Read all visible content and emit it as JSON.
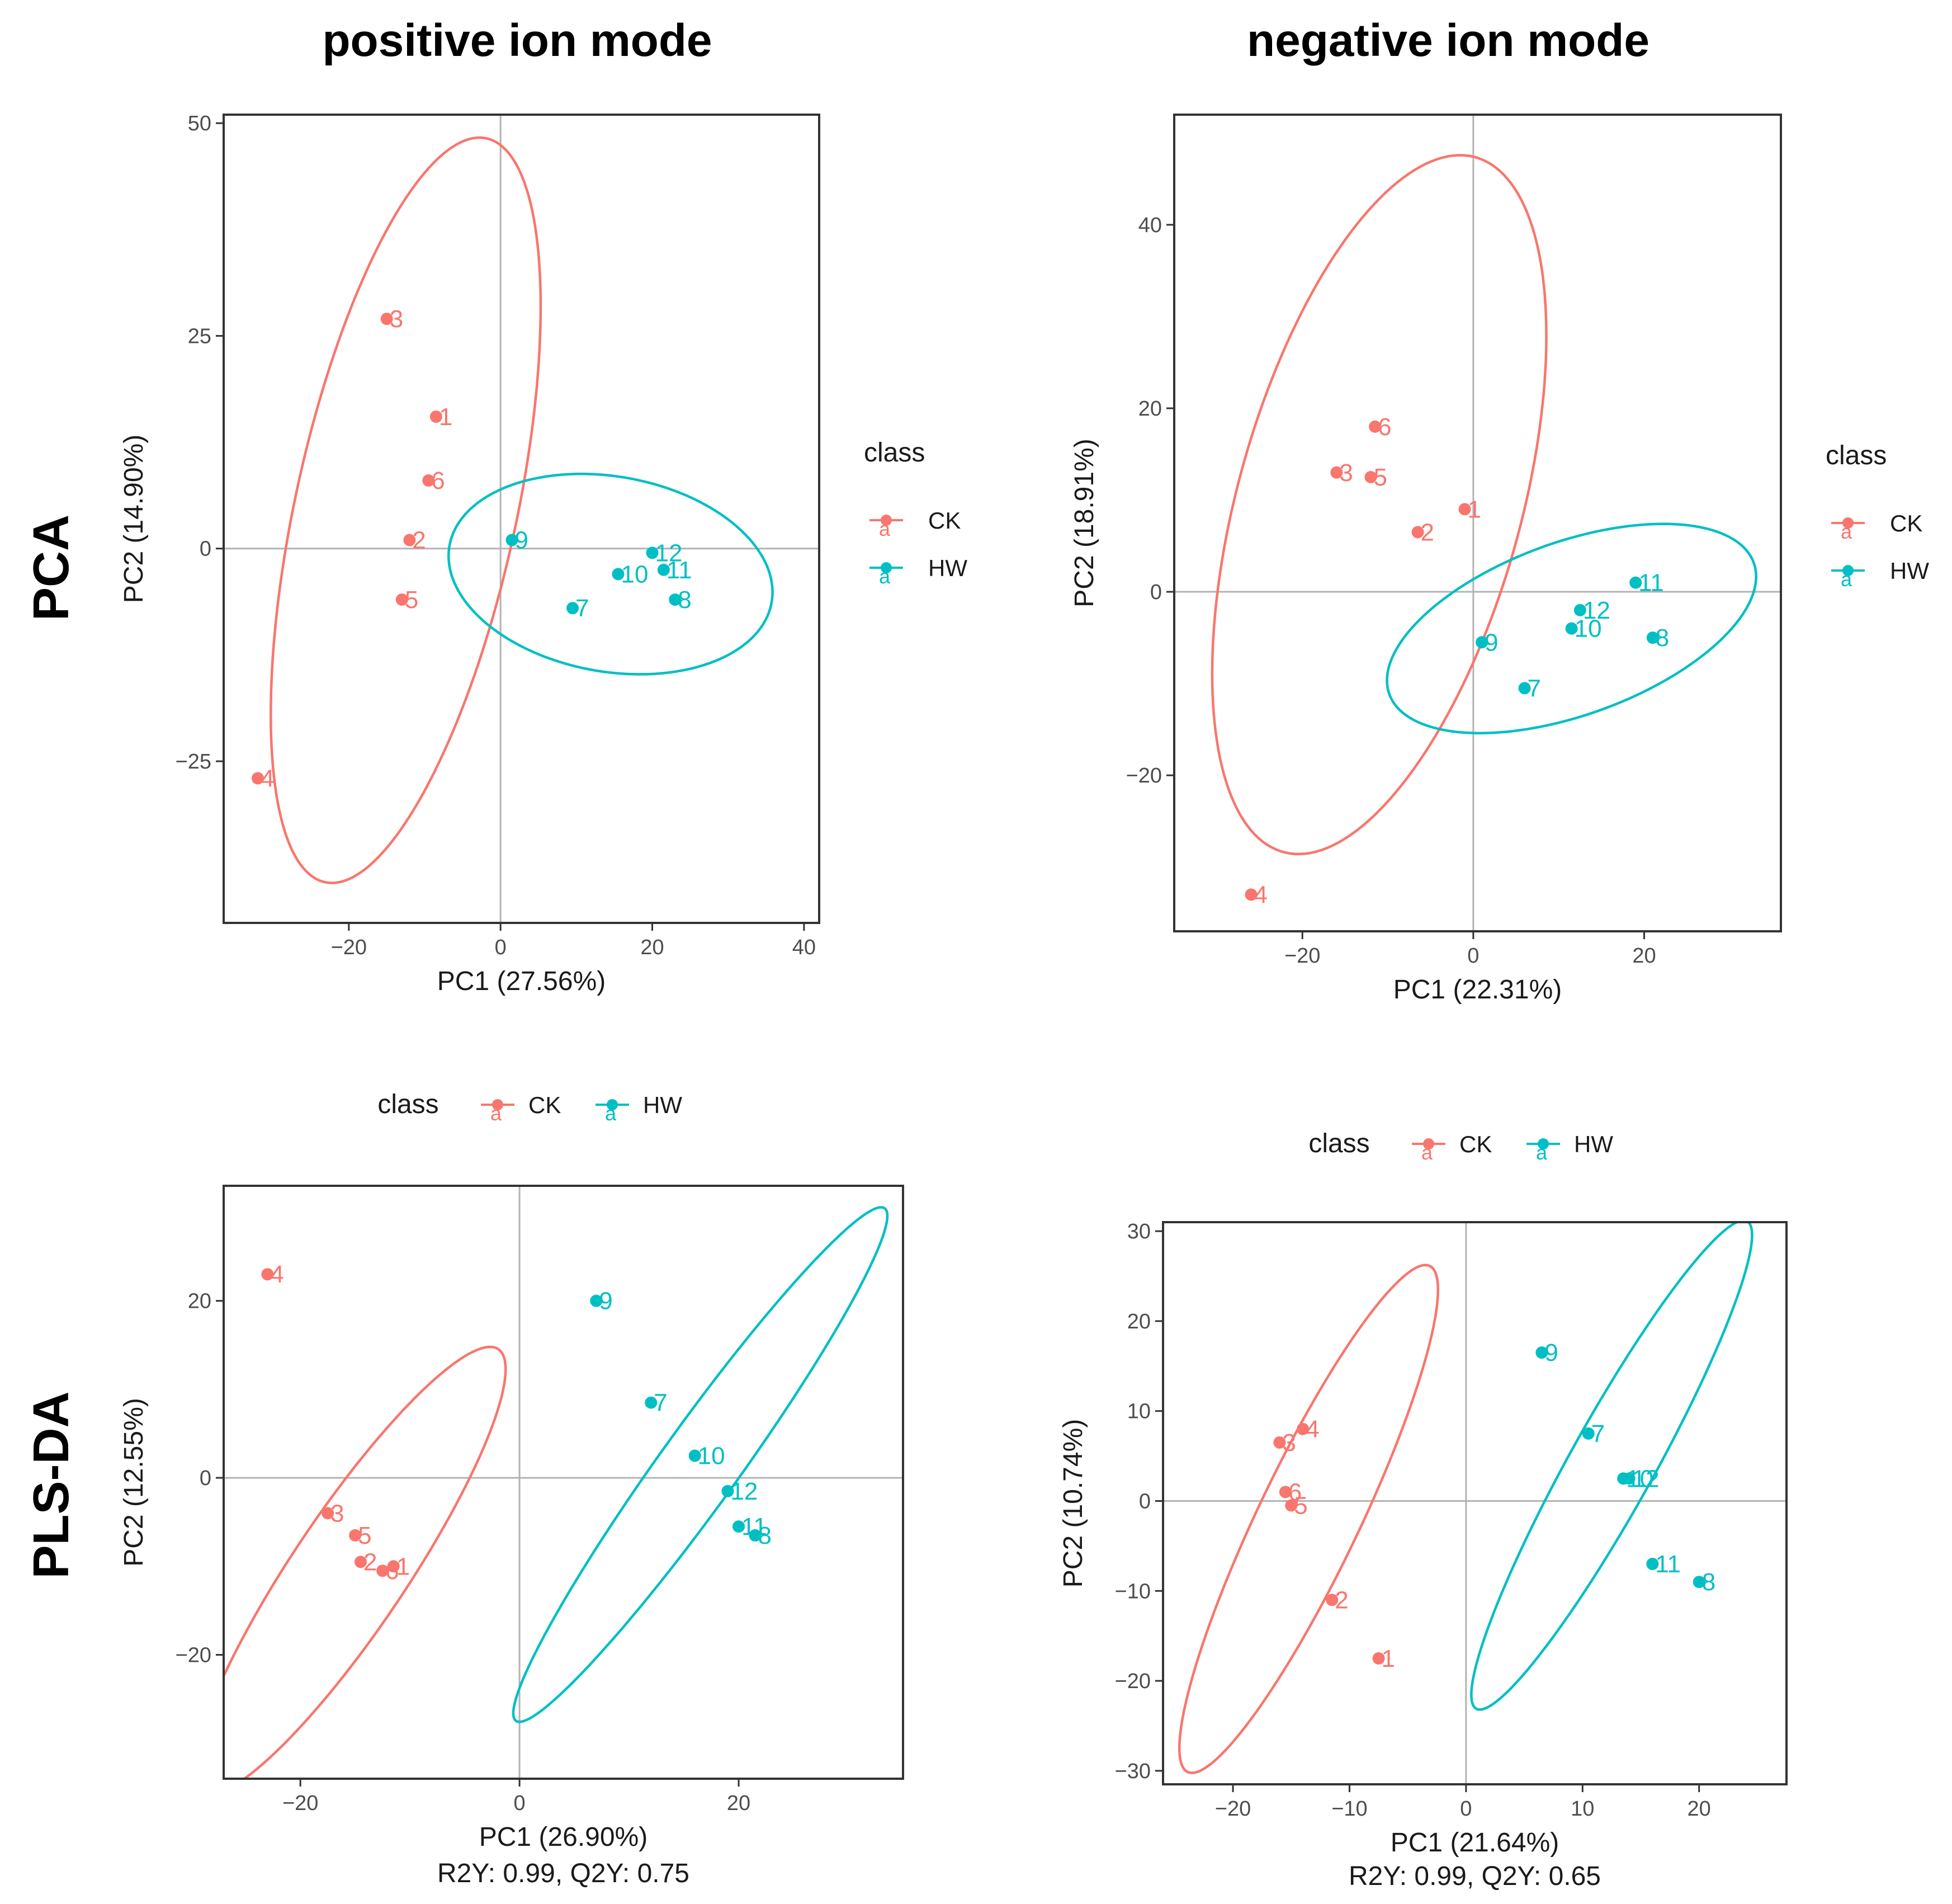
{
  "column_titles": [
    "positive ion mode",
    "negative ion mode"
  ],
  "row_titles": [
    "PCA",
    "PLS-DA"
  ],
  "colors": {
    "CK": "#F8766D",
    "HW": "#00BFC4"
  },
  "chart_data": [
    {
      "id": "pca_pos",
      "type": "scatter",
      "xlabel": "PC1 (27.56%)",
      "ylabel": "PC2 (14.90%)",
      "subtitle": "",
      "xlim": [
        -36.5,
        42
      ],
      "ylim": [
        -44,
        51
      ],
      "xticks": [
        -20,
        0,
        20,
        40
      ],
      "yticks": [
        -25,
        0,
        25,
        50
      ],
      "legend_position": "right",
      "legend": {
        "title": "class",
        "entries": [
          "CK",
          "HW"
        ],
        "key_glyph": "a"
      },
      "series": [
        {
          "name": "CK",
          "points": [
            {
              "label": "1",
              "x": -8.5,
              "y": 15.5
            },
            {
              "label": "2",
              "x": -12,
              "y": 1
            },
            {
              "label": "3",
              "x": -15,
              "y": 27
            },
            {
              "label": "4",
              "x": -32,
              "y": -27
            },
            {
              "label": "5",
              "x": -13,
              "y": -6
            },
            {
              "label": "6",
              "x": -9.5,
              "y": 8
            }
          ],
          "ellipse": {
            "cx": -12.5,
            "cy": 4.5,
            "rx": 45,
            "ry": 14.5,
            "angle_deg": 76
          }
        },
        {
          "name": "HW",
          "points": [
            {
              "label": "7",
              "x": 9.5,
              "y": -7
            },
            {
              "label": "8",
              "x": 23,
              "y": -6
            },
            {
              "label": "9",
              "x": 1.5,
              "y": 1
            },
            {
              "label": "10",
              "x": 15.5,
              "y": -3
            },
            {
              "label": "11",
              "x": 21.5,
              "y": -2.5
            },
            {
              "label": "12",
              "x": 20,
              "y": -0.5
            }
          ],
          "ellipse": {
            "cx": 14.5,
            "cy": -3,
            "rx": 21.5,
            "ry": 11.5,
            "angle_deg": -8
          }
        }
      ]
    },
    {
      "id": "pca_neg",
      "type": "scatter",
      "xlabel": "PC1 (22.31%)",
      "ylabel": "PC2 (18.91%)",
      "subtitle": "",
      "xlim": [
        -35,
        36
      ],
      "ylim": [
        -37,
        52
      ],
      "xticks": [
        -20,
        0,
        20
      ],
      "yticks": [
        -20,
        0,
        20,
        40
      ],
      "legend_position": "right",
      "legend": {
        "title": "class",
        "entries": [
          "CK",
          "HW"
        ],
        "key_glyph": "a"
      },
      "series": [
        {
          "name": "CK",
          "points": [
            {
              "label": "1",
              "x": -1,
              "y": 9
            },
            {
              "label": "2",
              "x": -6.5,
              "y": 6.5
            },
            {
              "label": "3",
              "x": -16,
              "y": 13
            },
            {
              "label": "4",
              "x": -26,
              "y": -33
            },
            {
              "label": "5",
              "x": -12,
              "y": 12.5
            },
            {
              "label": "6",
              "x": -11.5,
              "y": 18
            }
          ],
          "ellipse": {
            "cx": -11,
            "cy": 9.5,
            "rx": 39.5,
            "ry": 16.5,
            "angle_deg": 73
          }
        },
        {
          "name": "HW",
          "points": [
            {
              "label": "7",
              "x": 6,
              "y": -10.5
            },
            {
              "label": "8",
              "x": 21,
              "y": -5
            },
            {
              "label": "9",
              "x": 1,
              "y": -5.5
            },
            {
              "label": "10",
              "x": 11.5,
              "y": -4
            },
            {
              "label": "11",
              "x": 19,
              "y": 1
            },
            {
              "label": "12",
              "x": 12.5,
              "y": -2
            }
          ],
          "ellipse": {
            "cx": 11.5,
            "cy": -4,
            "rx": 22.5,
            "ry": 9.5,
            "angle_deg": 18
          }
        }
      ]
    },
    {
      "id": "plsda_pos",
      "type": "scatter",
      "xlabel": "PC1 (26.90%)",
      "subtitle": "R2Y: 0.99, Q2Y: 0.75",
      "ylabel": "PC2 (12.55%)",
      "xlim": [
        -27,
        35
      ],
      "ylim": [
        -34,
        33
      ],
      "xticks": [
        -20,
        0,
        20
      ],
      "yticks": [
        -20,
        0,
        20
      ],
      "legend_position": "top",
      "legend": {
        "title": "class",
        "entries": [
          "CK",
          "HW"
        ],
        "key_glyph": "a"
      },
      "series": [
        {
          "name": "CK",
          "points": [
            {
              "label": "1",
              "x": -11.5,
              "y": -10
            },
            {
              "label": "2",
              "x": -14.5,
              "y": -9.5
            },
            {
              "label": "3",
              "x": -17.5,
              "y": -4
            },
            {
              "label": "4",
              "x": -23,
              "y": 23
            },
            {
              "label": "5",
              "x": -15,
              "y": -6.5
            },
            {
              "label": "6",
              "x": -12.5,
              "y": -10.5
            }
          ],
          "ellipse": {
            "cx": -15.5,
            "cy": -10.5,
            "rx": 28.5,
            "ry": 5.5,
            "angle_deg": 62
          }
        },
        {
          "name": "HW",
          "points": [
            {
              "label": "7",
              "x": 12,
              "y": 8.5
            },
            {
              "label": "8",
              "x": 21.5,
              "y": -6.5
            },
            {
              "label": "9",
              "x": 7,
              "y": 20
            },
            {
              "label": "10",
              "x": 16,
              "y": 2.5
            },
            {
              "label": "11",
              "x": 20,
              "y": -5.5
            },
            {
              "label": "12",
              "x": 19,
              "y": -1.5
            }
          ],
          "ellipse": {
            "cx": 16.5,
            "cy": 1.5,
            "rx": 33.5,
            "ry": 3.8,
            "angle_deg": 60
          }
        }
      ]
    },
    {
      "id": "plsda_neg",
      "type": "scatter",
      "xlabel": "PC1 (21.64%)",
      "subtitle": "R2Y: 0.99, Q2Y: 0.65",
      "ylabel": "PC2 (10.74%)",
      "xlim": [
        -26,
        27.5
      ],
      "ylim": [
        -31.5,
        31
      ],
      "xticks": [
        -20,
        -10,
        0,
        10,
        20
      ],
      "yticks": [
        -30,
        -20,
        -10,
        0,
        10,
        20,
        30
      ],
      "legend_position": "top",
      "legend": {
        "title": "class",
        "entries": [
          "CK",
          "HW"
        ],
        "key_glyph": "a"
      },
      "series": [
        {
          "name": "CK",
          "points": [
            {
              "label": "1",
              "x": -7.5,
              "y": -17.5
            },
            {
              "label": "2",
              "x": -11.5,
              "y": -11
            },
            {
              "label": "3",
              "x": -16,
              "y": 6.5
            },
            {
              "label": "4",
              "x": -14,
              "y": 8
            },
            {
              "label": "5",
              "x": -15,
              "y": -0.5
            },
            {
              "label": "6",
              "x": -15.5,
              "y": 1
            }
          ],
          "ellipse": {
            "cx": -13.5,
            "cy": -2,
            "rx": 30,
            "ry": 4.5,
            "angle_deg": 70
          }
        },
        {
          "name": "HW",
          "points": [
            {
              "label": "7",
              "x": 10.5,
              "y": 7.5
            },
            {
              "label": "8",
              "x": 20,
              "y": -9
            },
            {
              "label": "9",
              "x": 6.5,
              "y": 16.5
            },
            {
              "label": "10",
              "x": 13.5,
              "y": 2.5
            },
            {
              "label": "11",
              "x": 16,
              "y": -7
            },
            {
              "label": "12",
              "x": 14,
              "y": 2.5
            }
          ],
          "ellipse": {
            "cx": 12.5,
            "cy": 4,
            "rx": 29.5,
            "ry": 3.8,
            "angle_deg": 67
          }
        }
      ]
    }
  ]
}
